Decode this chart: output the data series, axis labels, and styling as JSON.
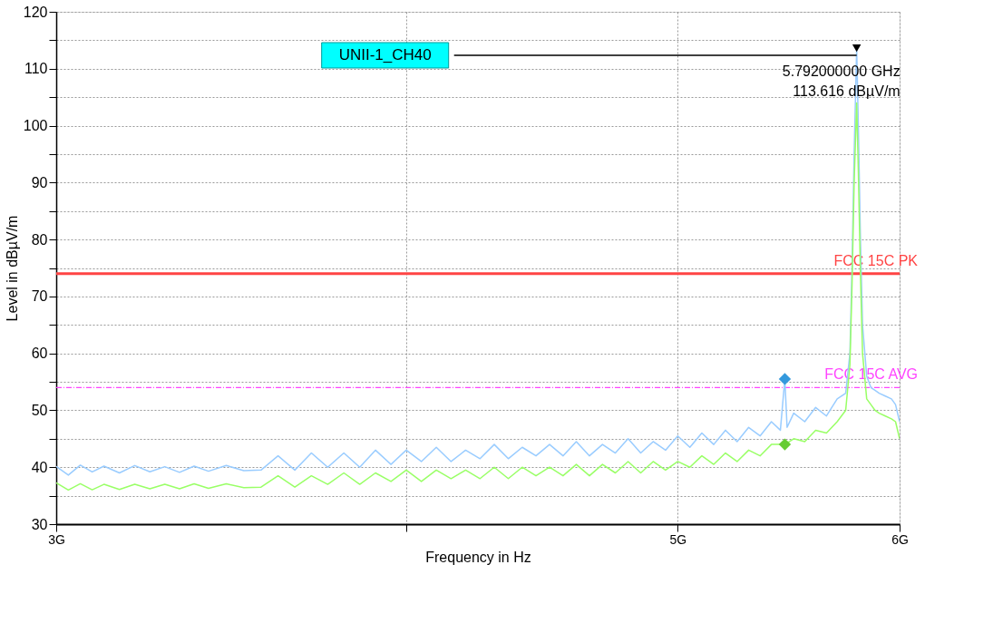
{
  "chart_data": {
    "type": "line",
    "xlabel": "Frequency in Hz",
    "ylabel": "Level in dBµV/m",
    "log": "x",
    "grid": true,
    "xlim": [
      3,
      6
    ],
    "ylim": [
      30,
      120
    ],
    "xticks": [
      {
        "value": 3,
        "label": "3G"
      },
      {
        "value": 4,
        "label": null
      },
      {
        "value": 5,
        "label": "5G"
      },
      {
        "value": 6,
        "label": "6G"
      }
    ],
    "yticks": [
      30,
      {
        "value": 35,
        "label": null
      },
      40,
      {
        "value": 45,
        "label": null
      },
      50,
      {
        "value": 55,
        "label": null
      },
      60,
      {
        "value": 65,
        "label": null
      },
      70,
      {
        "value": 75,
        "label": null
      },
      80,
      {
        "value": 85,
        "label": null
      },
      90,
      {
        "value": 95,
        "label": null
      },
      100,
      {
        "value": 105,
        "label": null
      },
      110,
      {
        "value": 115,
        "label": null
      },
      120
    ],
    "series": [
      {
        "color": "#99ccff",
        "x": [
          3.0,
          3.03,
          3.06,
          3.09,
          3.12,
          3.16,
          3.2,
          3.24,
          3.28,
          3.32,
          3.36,
          3.4,
          3.45,
          3.5,
          3.55,
          3.6,
          3.65,
          3.7,
          3.75,
          3.8,
          3.85,
          3.9,
          3.95,
          4.0,
          4.05,
          4.1,
          4.15,
          4.2,
          4.25,
          4.3,
          4.35,
          4.4,
          4.45,
          4.5,
          4.55,
          4.6,
          4.65,
          4.7,
          4.75,
          4.8,
          4.85,
          4.9,
          4.95,
          5.0,
          5.05,
          5.1,
          5.15,
          5.2,
          5.25,
          5.3,
          5.35,
          5.4,
          5.44,
          5.46,
          5.47,
          5.5,
          5.55,
          5.6,
          5.65,
          5.7,
          5.74,
          5.76,
          5.77,
          5.78,
          5.792,
          5.8,
          5.81,
          5.82,
          5.84,
          5.86,
          5.88,
          5.9,
          5.93,
          5.96,
          5.98,
          6.0
        ],
        "values": [
          40.15,
          38.61,
          40.37,
          39.17,
          40.2,
          39,
          40.3,
          39.2,
          40.1,
          39.1,
          40.2,
          39.3,
          40.3,
          39.4,
          39.5,
          42,
          39.5,
          42.5,
          40,
          42.5,
          40,
          43,
          40.5,
          43,
          41,
          43.5,
          41,
          43,
          41.5,
          44,
          41.5,
          43.5,
          42,
          44,
          42,
          44.5,
          42,
          44,
          42.5,
          45,
          42.5,
          44.5,
          43,
          45.5,
          43.5,
          46,
          44,
          46.5,
          44.5,
          47,
          45.5,
          48,
          46.5,
          55.5,
          47,
          49.5,
          48,
          50.5,
          49,
          52,
          53,
          60,
          75,
          95,
          113.616,
          100,
          80,
          65,
          56,
          54,
          53.5,
          53,
          52.5,
          52,
          51,
          48
        ]
      },
      {
        "color": "#99ff66",
        "x": [
          3.0,
          3.03,
          3.06,
          3.09,
          3.12,
          3.16,
          3.2,
          3.24,
          3.28,
          3.32,
          3.36,
          3.4,
          3.45,
          3.5,
          3.55,
          3.6,
          3.65,
          3.7,
          3.75,
          3.8,
          3.85,
          3.9,
          3.95,
          4.0,
          4.05,
          4.1,
          4.15,
          4.2,
          4.25,
          4.3,
          4.35,
          4.4,
          4.45,
          4.5,
          4.55,
          4.6,
          4.65,
          4.7,
          4.75,
          4.8,
          4.85,
          4.9,
          4.95,
          5.0,
          5.05,
          5.1,
          5.15,
          5.2,
          5.25,
          5.3,
          5.35,
          5.4,
          5.46,
          5.5,
          5.55,
          5.6,
          5.65,
          5.7,
          5.74,
          5.76,
          5.77,
          5.78,
          5.792,
          5.8,
          5.81,
          5.82,
          5.84,
          5.86,
          5.88,
          5.9,
          5.93,
          5.96,
          5.98,
          6.0
        ],
        "values": [
          37.25,
          36,
          37.1,
          36.04,
          37,
          36.1,
          37,
          36.2,
          37,
          36.2,
          37.1,
          36.3,
          37.1,
          36.4,
          36.5,
          38.5,
          36.5,
          38.5,
          37,
          39,
          37,
          39,
          37.5,
          39.5,
          37.5,
          39.5,
          38,
          39.5,
          38,
          40,
          38,
          40,
          38.5,
          40,
          38.5,
          40.5,
          38.5,
          40.5,
          39,
          41,
          39,
          41,
          39.5,
          41,
          40,
          42,
          40.5,
          42.5,
          41,
          43,
          42,
          44,
          44,
          45,
          44.5,
          46.5,
          46,
          48,
          50,
          58,
          72,
          90,
          104,
          92,
          74,
          60,
          52,
          51,
          50,
          49.5,
          49,
          48.5,
          48,
          45
        ]
      },
      {
        "type": "scatter",
        "marker": "diamond",
        "color": "#3399dd",
        "x": [
          5.46
        ],
        "values": [
          55.5
        ]
      },
      {
        "type": "scatter",
        "marker": "diamond",
        "color": "#66cc33",
        "x": [
          5.46
        ],
        "values": [
          44
        ]
      }
    ],
    "ref_lines": [
      {
        "axis": "y",
        "value": 74,
        "label": "FCC 15C PK",
        "color": "#ff4444",
        "line_style": "solid"
      },
      {
        "axis": "y",
        "value": 54,
        "label": "FCC 15C AVG",
        "color": "#ff44ff",
        "line_style": "dashdot"
      }
    ],
    "annotations": [
      "UNII-1_CH40",
      {
        "text": "5.792000000 GHz\n113.616 dBµV/m",
        "x": 5.792,
        "y": 113.616
      }
    ]
  }
}
